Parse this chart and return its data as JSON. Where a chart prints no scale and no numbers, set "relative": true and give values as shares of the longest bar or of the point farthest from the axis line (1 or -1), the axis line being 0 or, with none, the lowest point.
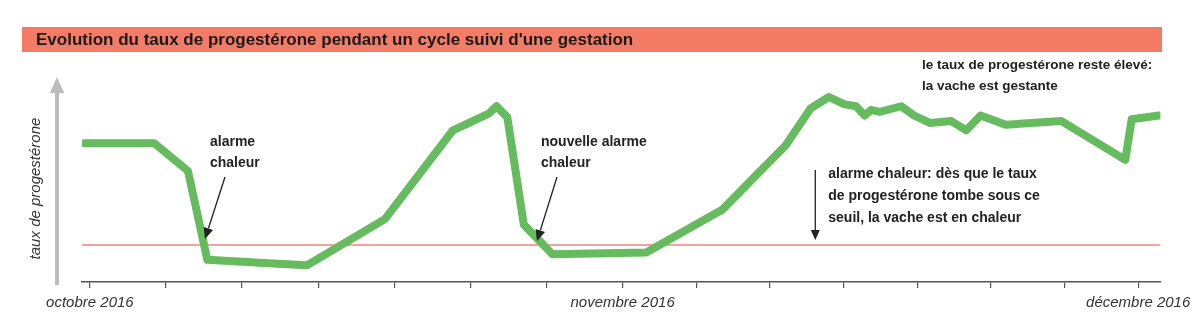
{
  "chart_data": {
    "type": "line",
    "title": "Evolution du taux de progestérone pendant un cycle suivi d'une gestation",
    "ylabel": "taux de progestérone",
    "relative": true,
    "xlim": [
      "2016-09-30T13:00",
      "2016-12-02T07:00"
    ],
    "xticks": [
      {
        "value": "2016-10-01",
        "label": "octobre 2016"
      },
      {
        "value": "2016-10-05T10:17",
        "label": null
      },
      {
        "value": "2016-10-09T20:34",
        "label": null
      },
      {
        "value": "2016-10-14T06:51",
        "label": null
      },
      {
        "value": "2016-10-18T17:09",
        "label": null
      },
      {
        "value": "2016-10-23T03:26",
        "label": null
      },
      {
        "value": "2016-10-27T13:43",
        "label": null
      },
      {
        "value": "2016-11-01",
        "label": "novembre 2016"
      },
      {
        "value": "2016-11-05T06:51",
        "label": null
      },
      {
        "value": "2016-11-09T13:43",
        "label": null
      },
      {
        "value": "2016-11-13T20:34",
        "label": null
      },
      {
        "value": "2016-11-18T03:26",
        "label": null
      },
      {
        "value": "2016-11-22T10:17",
        "label": null
      },
      {
        "value": "2016-11-26T17:09",
        "label": null
      },
      {
        "value": "2016-12-01",
        "label": "décembre 2016"
      }
    ],
    "x": [
      "2016-09-30T16:00",
      "2016-10-04T18:00",
      "2016-10-06T17:00",
      "2016-10-07T20:00",
      "2016-10-13T15:00",
      "2016-10-18T04:00",
      "2016-10-22T03:00",
      "2016-10-24T05:00",
      "2016-10-24T16:00",
      "2016-10-25T07:00",
      "2016-10-26T06:00",
      "2016-10-27T22:00",
      "2016-11-02T09:00",
      "2016-11-06T19:00",
      "2016-11-10T12:00",
      "2016-11-11T23:00",
      "2016-11-13T00:00",
      "2016-11-13T22:00",
      "2016-11-14T14:00",
      "2016-11-15T02:00",
      "2016-11-15T11:00",
      "2016-11-15T23:00",
      "2016-11-17T05:00",
      "2016-11-17T23:00",
      "2016-11-18T21:00",
      "2016-11-20T03:00",
      "2016-11-21T00:00",
      "2016-11-21T20:00",
      "2016-11-23T07:00",
      "2016-11-26T13:00",
      "2016-11-30T06:00",
      "2016-11-30T15:00",
      "2016-12-02T05:00"
    ],
    "series": [
      {
        "color": "#66bb5e",
        "values": [
          0.75,
          0.75,
          0.6,
          0.12,
          0.09,
          0.34,
          0.82,
          0.91,
          0.95,
          0.89,
          0.31,
          0.15,
          0.16,
          0.39,
          0.74,
          0.94,
          1,
          0.96,
          0.95,
          0.9,
          0.93,
          0.92,
          0.95,
          0.9,
          0.86,
          0.87,
          0.82,
          0.9,
          0.85,
          0.87,
          0.66,
          0.88,
          0.9
        ]
      }
    ],
    "ref_lines": [
      {
        "axis": "y",
        "value": 0.2,
        "label": "alarme chaleur: dès que le taux de progestérone tombe sous ce seuil, la vache est en chaleur",
        "color": "#e8463c"
      }
    ],
    "annotations": [
      "alarme chaleur",
      "nouvelle alarme chaleur",
      "le taux de progestérone reste élevé: la vache est gestante"
    ],
    "grid": false,
    "legend": false,
    "marker": "none",
    "line_style": "solid"
  }
}
